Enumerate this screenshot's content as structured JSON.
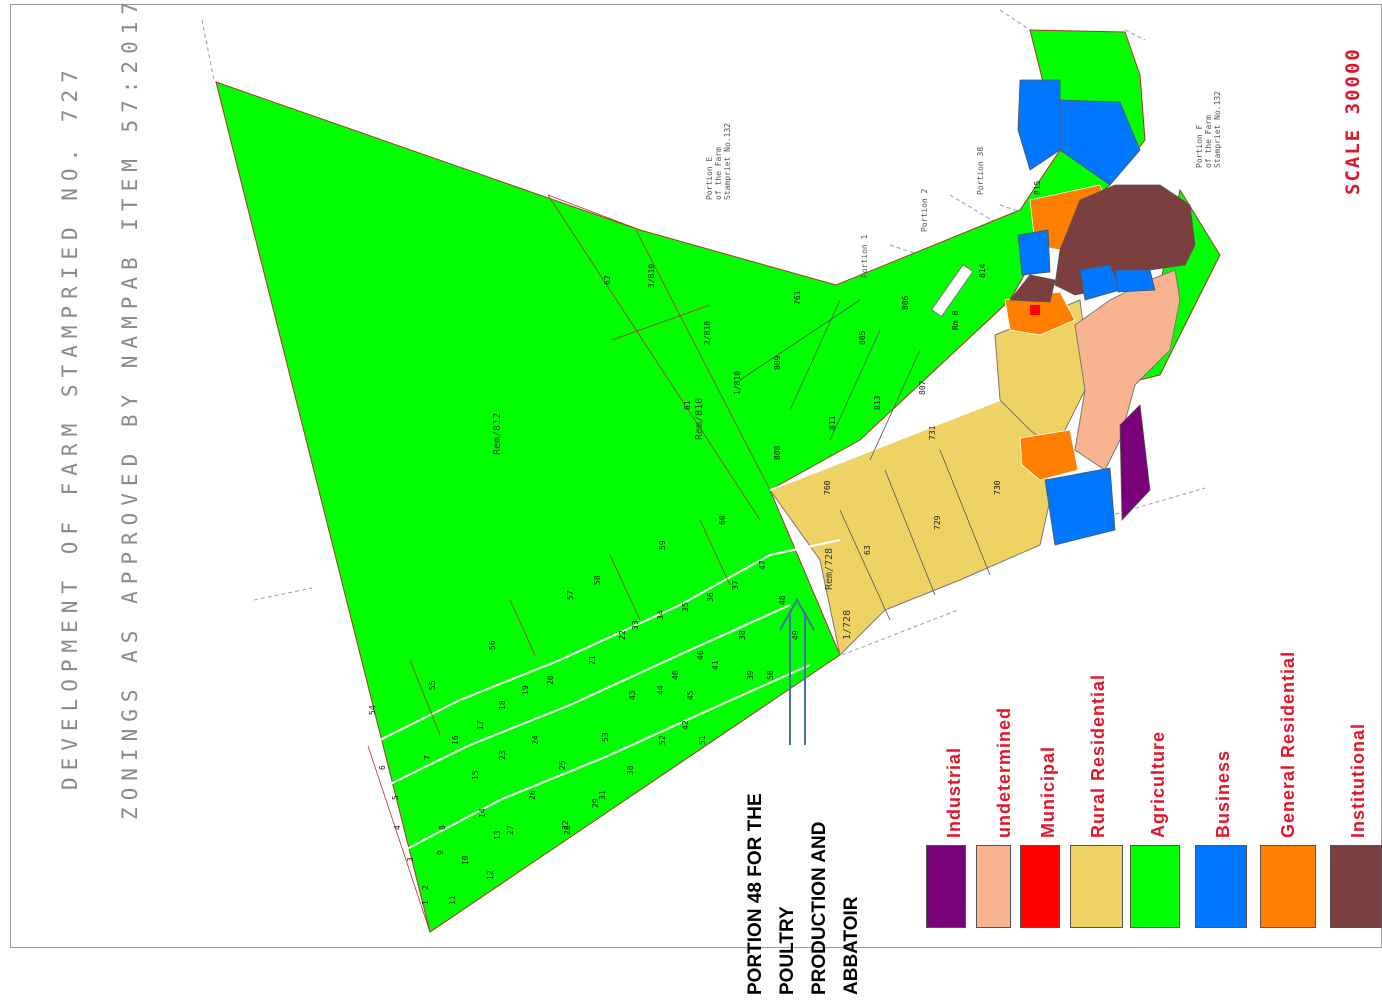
{
  "title": {
    "line1": "DEVELOPMENT  OF  FARM  STAMPRIED  NO. 727",
    "line2": "ZONINGS  AS  APPROVED  BY  NAMPAB  ITEM  57:2017"
  },
  "scale_label": "SCALE 30000",
  "callout": {
    "lines": [
      "PORTION 48 FOR THE",
      "POULTRY",
      "PRODUCTION AND",
      "ABBATOIR"
    ]
  },
  "neighbour_labels": {
    "portion_e": [
      "Portion E",
      "of the Farm",
      "Stampriet No.132"
    ],
    "portion_f": [
      "Portion F",
      "of the Farm",
      "Stampriet No.132"
    ],
    "portion_1": "Portion 1",
    "portion_2": "Portion 2",
    "portion_38": "Portion 38"
  },
  "legend": [
    {
      "label": "Industrial",
      "color": "#7a007a"
    },
    {
      "label": "undetermined",
      "color": "#f9b48f"
    },
    {
      "label": "Municipal",
      "color": "#ff0000"
    },
    {
      "label": "Rural Residential",
      "color": "#efd264"
    },
    {
      "label": "Agriculture",
      "color": "#00ff00"
    },
    {
      "label": "Business",
      "color": "#0077ff"
    },
    {
      "label": "General Residential",
      "color": "#ff8000"
    },
    {
      "label": "Institutional",
      "color": "#7b3f3f"
    }
  ],
  "parcel_labels": {
    "rem812": "Rem/812",
    "rem728": "Rem/728",
    "p1728": "1/728",
    "rem810": "Rem/810",
    "p2810": "2/810",
    "p1810": "1/810",
    "p3810": "3/810",
    "rem8": "Rm 8",
    "numbers": [
      "1",
      "2",
      "3",
      "4",
      "5",
      "6",
      "7",
      "8",
      "9",
      "10",
      "11",
      "12",
      "13",
      "14",
      "15",
      "16",
      "17",
      "18",
      "19",
      "20",
      "21",
      "22",
      "23",
      "24",
      "25",
      "26",
      "27",
      "28",
      "29",
      "30",
      "31",
      "32",
      "33",
      "34",
      "35",
      "36",
      "37",
      "38",
      "39",
      "40",
      "41",
      "42",
      "43",
      "44",
      "45",
      "46",
      "47",
      "48",
      "49",
      "50",
      "51",
      "52",
      "53",
      "54",
      "55",
      "56",
      "57",
      "58",
      "59",
      "60",
      "61",
      "62",
      "63",
      "729",
      "730",
      "731",
      "760",
      "761",
      "805",
      "806",
      "807",
      "808",
      "809",
      "811",
      "813",
      "814",
      "815"
    ]
  }
}
